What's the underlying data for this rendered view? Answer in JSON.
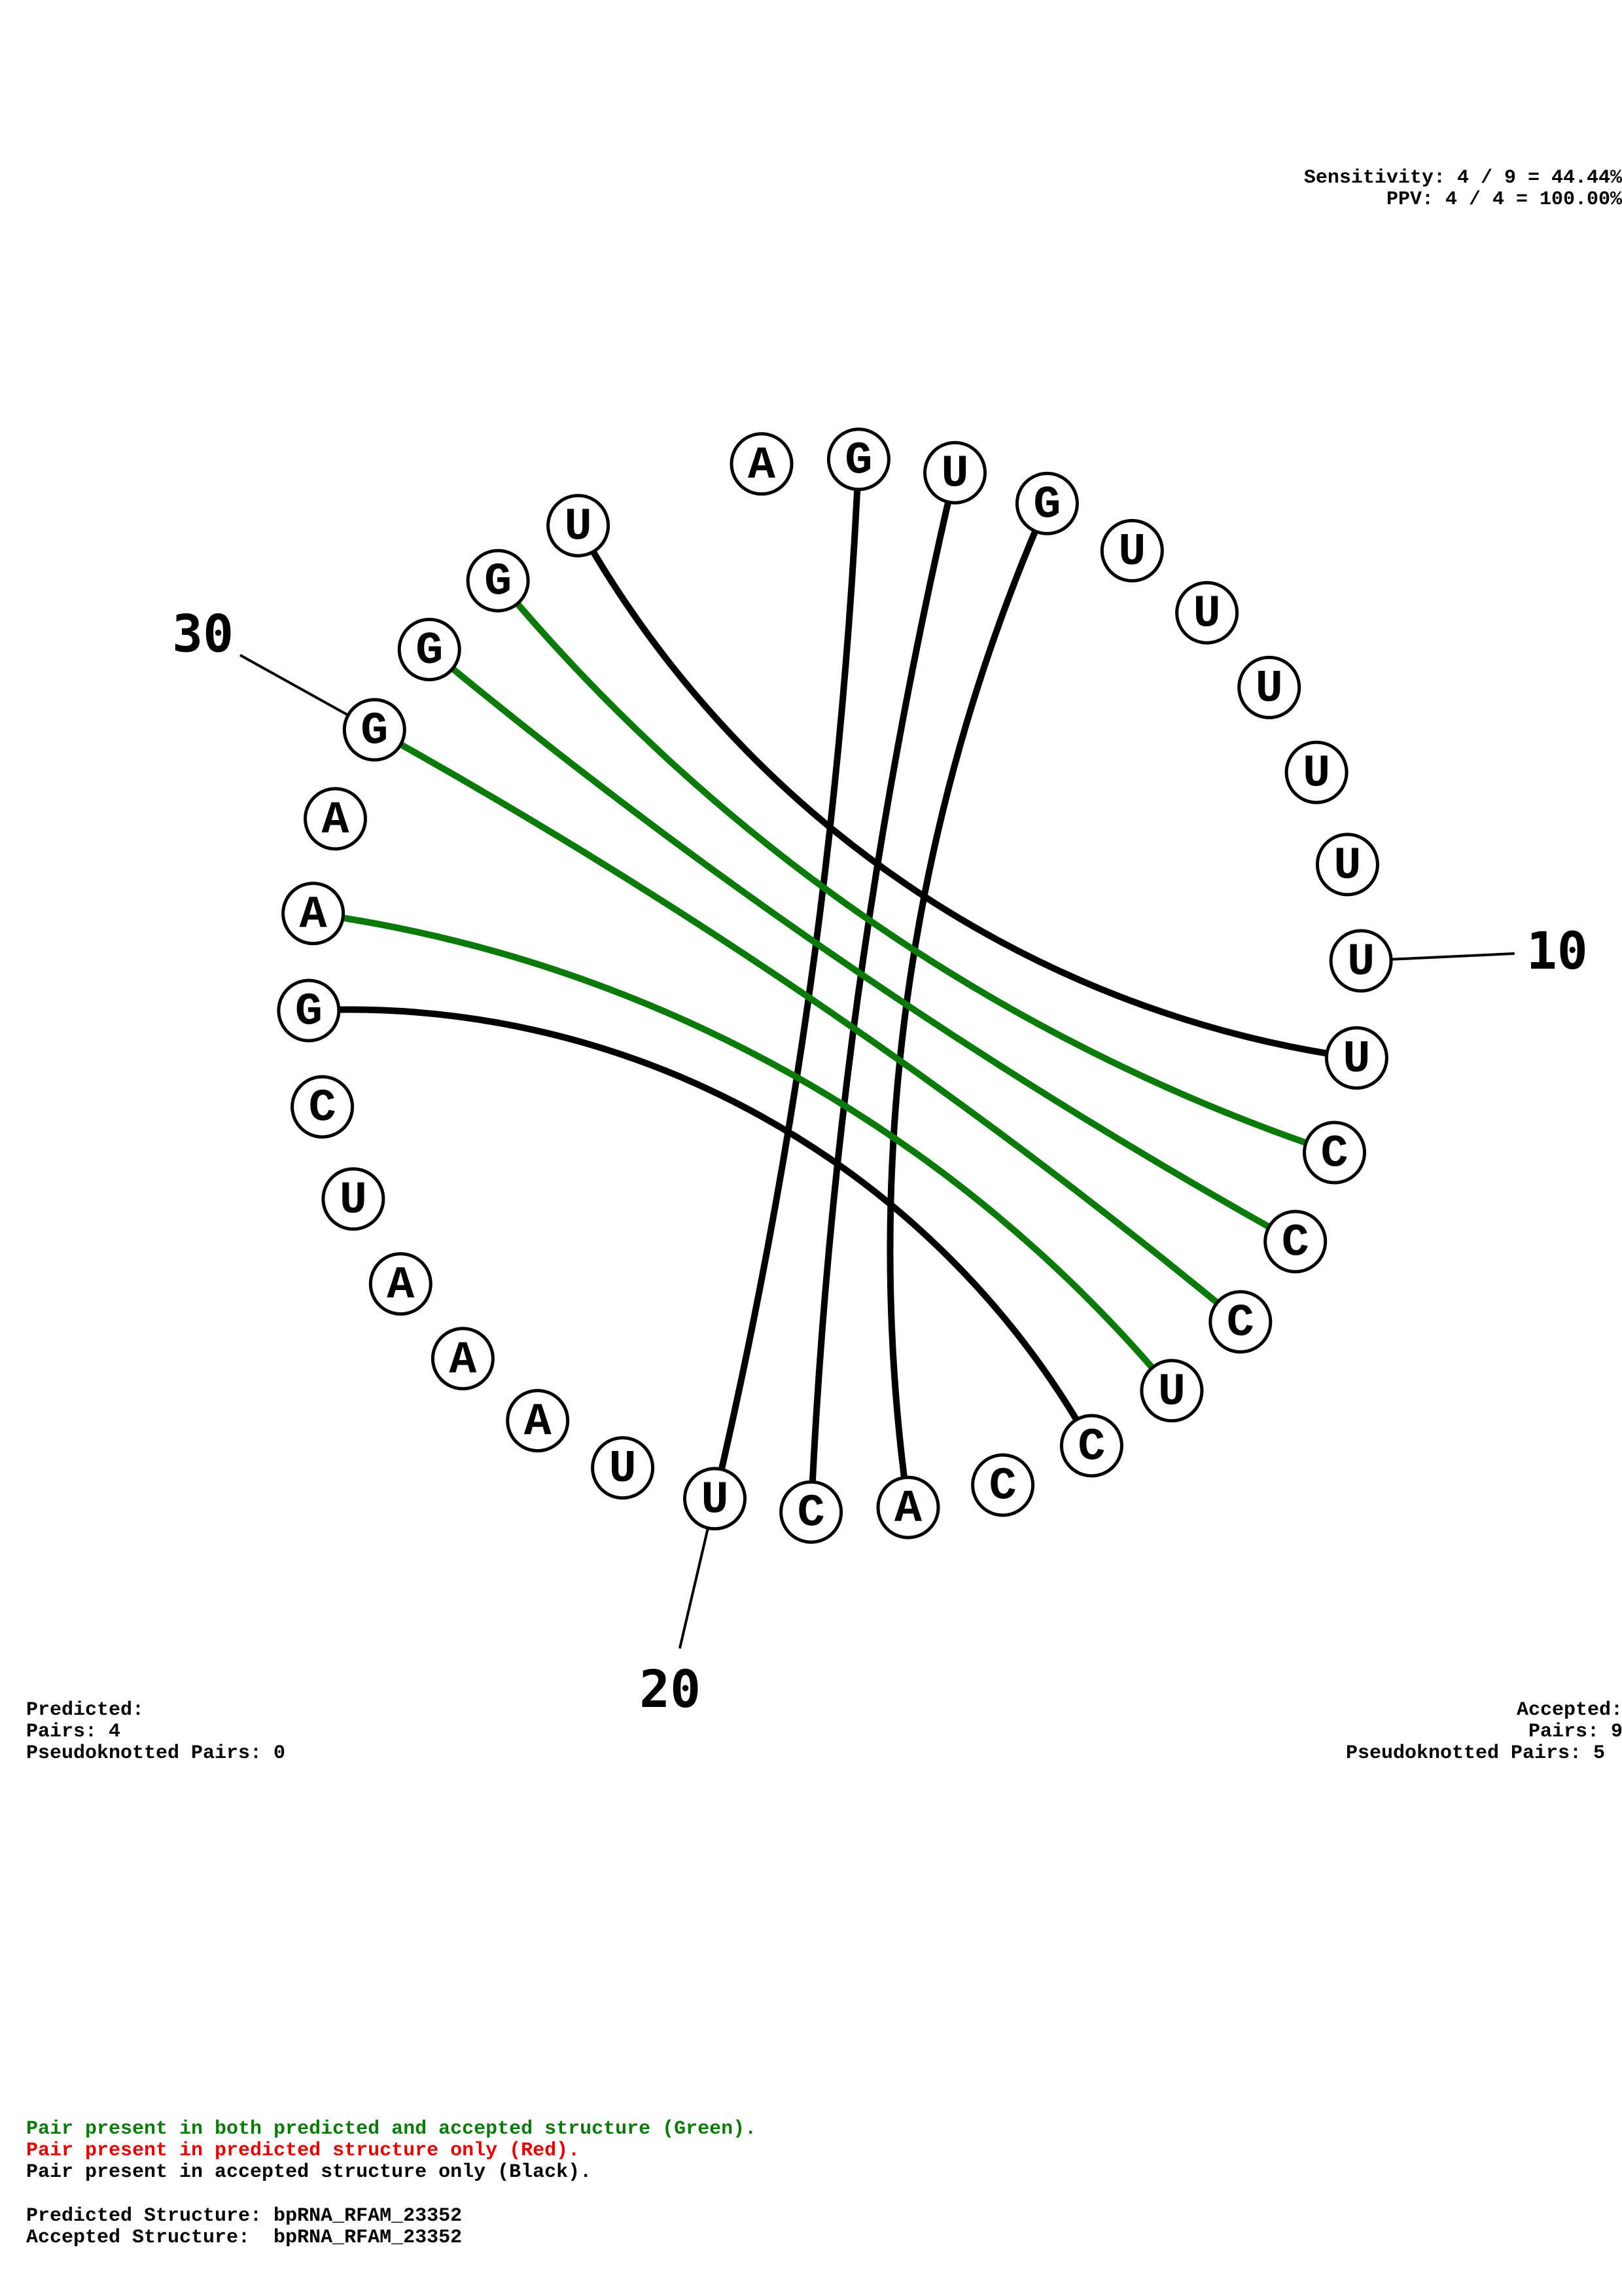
{
  "stats": {
    "sensitivity": "Sensitivity: 4 / 9 = 44.44%",
    "ppv": "PPV: 4 / 4 = 100.00%"
  },
  "predicted": {
    "heading": "Predicted:",
    "pairs": "Pairs: 4",
    "pseudoknotted": "Pseudoknotted Pairs: 0"
  },
  "accepted": {
    "heading": "Accepted:",
    "pairs": "Pairs: 9",
    "pseudoknotted": "Pseudoknotted Pairs: 5"
  },
  "legend": {
    "green": "Pair present in both predicted and accepted structure (Green).",
    "red": "Pair present in predicted structure only (Red).",
    "black": "Pair present in accepted structure only (Black).",
    "green_color": "#0b7a0b",
    "red_color": "#e00000",
    "black_color": "#000000"
  },
  "structures": {
    "predicted": "Predicted Structure: bpRNA_RFAM_23352",
    "accepted": "Accepted Structure:  bpRNA_RFAM_23352"
  },
  "chart_data": {
    "type": "circular-arc-diagram",
    "sequence": [
      "A",
      "G",
      "U",
      "G",
      "U",
      "U",
      "U",
      "U",
      "U",
      "U",
      "U",
      "C",
      "C",
      "C",
      "U",
      "C",
      "C",
      "A",
      "C",
      "U",
      "U",
      "A",
      "A",
      "A",
      "U",
      "C",
      "G",
      "A",
      "A",
      "G",
      "G",
      "G",
      "U"
    ],
    "ruler_labels": [
      {
        "index": 10,
        "label": "10"
      },
      {
        "index": 20,
        "label": "20"
      },
      {
        "index": 30,
        "label": "30"
      }
    ],
    "pairs": [
      {
        "i": 2,
        "j": 20,
        "type": "accepted-only",
        "color": "#000000"
      },
      {
        "i": 3,
        "j": 19,
        "type": "accepted-only",
        "color": "#000000"
      },
      {
        "i": 4,
        "j": 18,
        "type": "accepted-only",
        "color": "#000000"
      },
      {
        "i": 11,
        "j": 33,
        "type": "accepted-only",
        "color": "#000000"
      },
      {
        "i": 16,
        "j": 27,
        "type": "accepted-only",
        "color": "#000000"
      },
      {
        "i": 12,
        "j": 32,
        "type": "both",
        "color": "#0b7a0b"
      },
      {
        "i": 13,
        "j": 31,
        "type": "both",
        "color": "#0b7a0b"
      },
      {
        "i": 14,
        "j": 30,
        "type": "both",
        "color": "#0b7a0b"
      },
      {
        "i": 15,
        "j": 28,
        "type": "both",
        "color": "#0b7a0b"
      }
    ]
  }
}
